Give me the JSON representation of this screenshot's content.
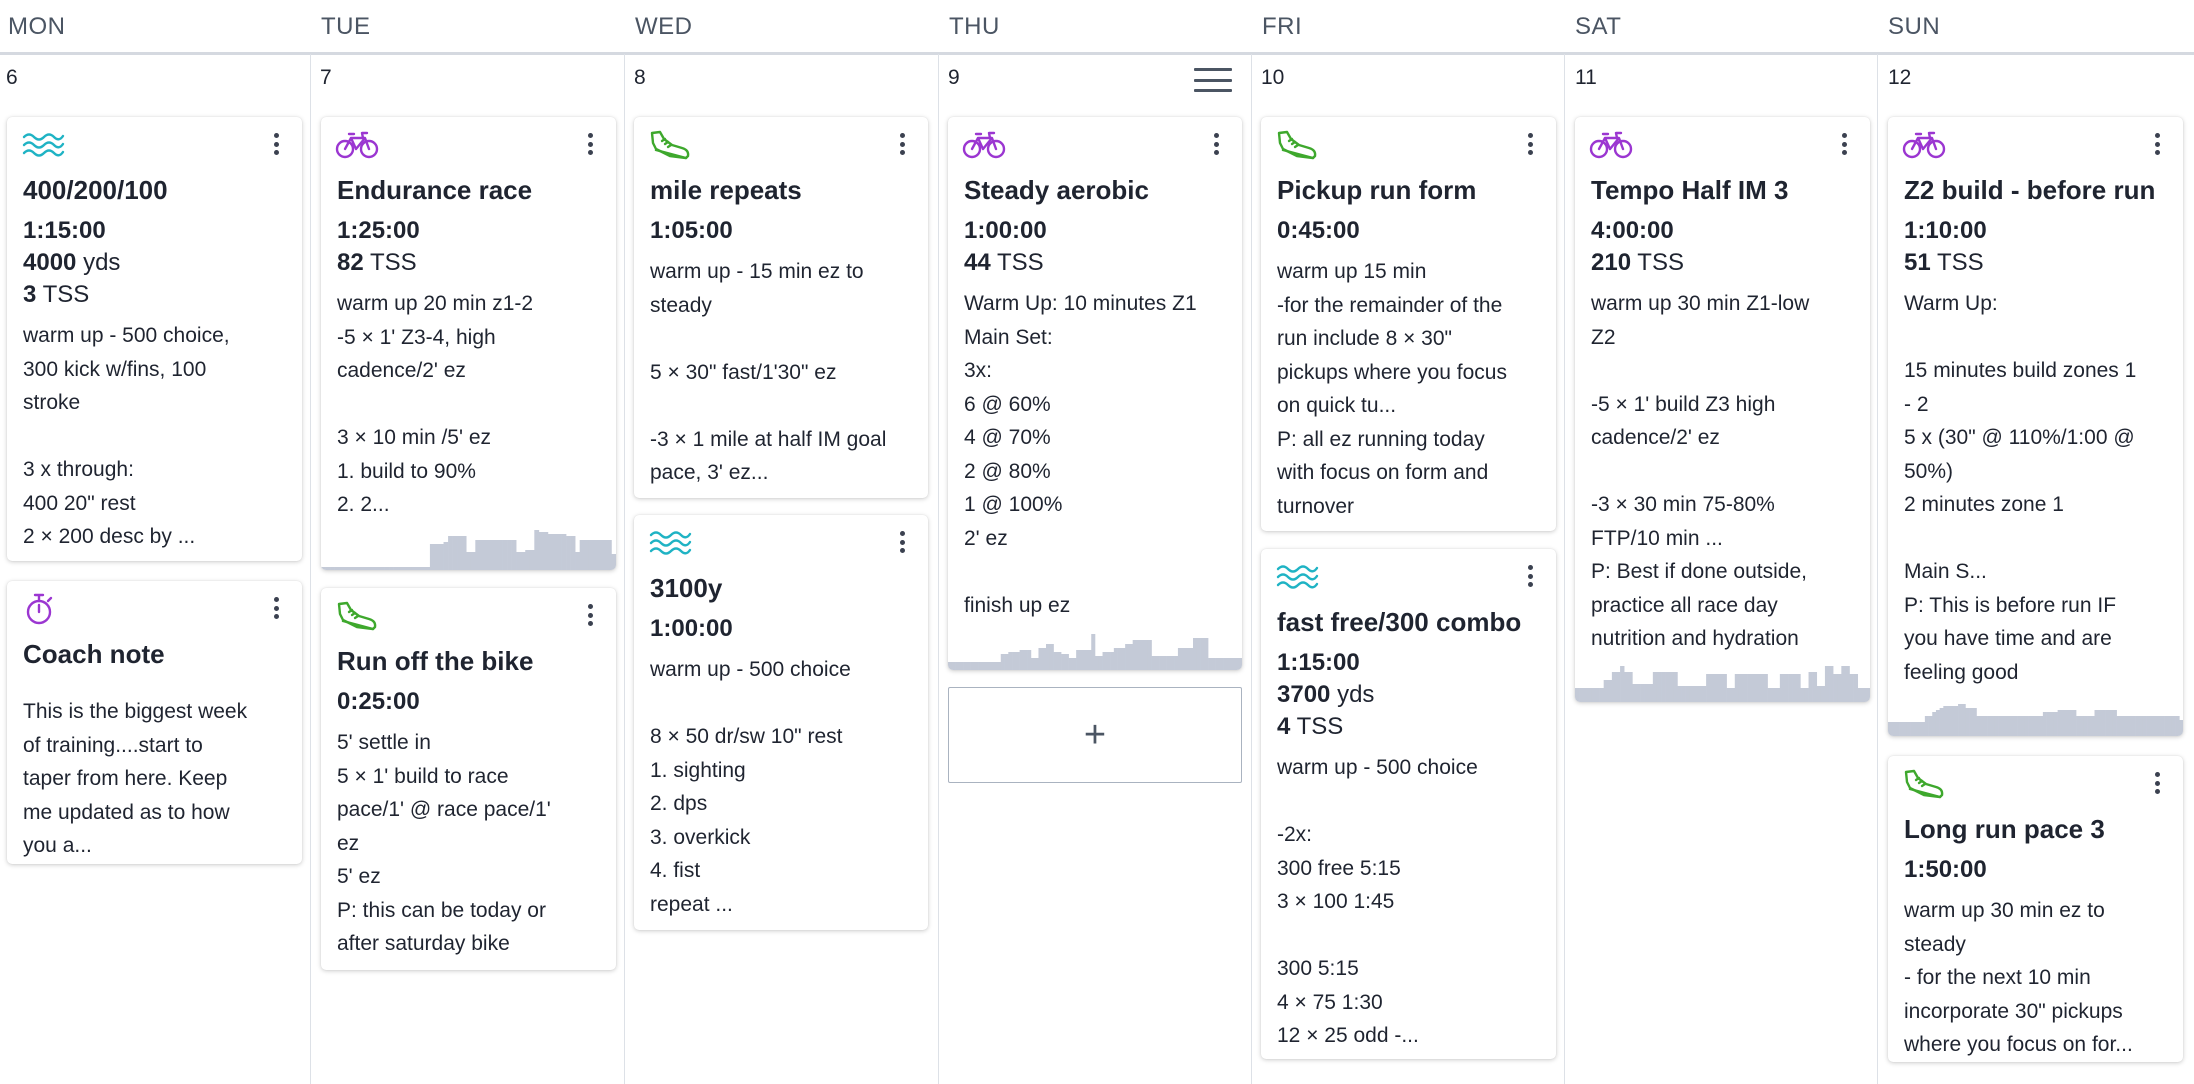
{
  "colors": {
    "swim": "#1fb3c4",
    "bike": "#9b36d1",
    "run": "#3ea82d",
    "note": "#9b36d1",
    "spark": "#c4cad7"
  },
  "days": [
    {
      "name": "MON",
      "date": "6"
    },
    {
      "name": "TUE",
      "date": "7"
    },
    {
      "name": "WED",
      "date": "8"
    },
    {
      "name": "THU",
      "date": "9"
    },
    {
      "name": "FRI",
      "date": "10"
    },
    {
      "name": "SAT",
      "date": "11"
    },
    {
      "name": "SUN",
      "date": "12"
    }
  ],
  "cards": [
    {
      "icon": "swim-icon",
      "title": "400/200/100",
      "duration": "1:15:00",
      "distance": "4000",
      "distance_unit": "yds",
      "tss": "3",
      "tss_unit": "TSS",
      "description": "warm up - 500 choice,\n300 kick w/fins, 100\nstroke\n\n3 x through:\n400 20\" rest\n2 × 200 desc by ..."
    },
    {
      "icon": "stopwatch-icon",
      "title": "Coach note",
      "description": "This is the biggest week\nof training....start to\ntaper from here. Keep\nme updated as to how\nyou a..."
    },
    {
      "icon": "bike-icon",
      "title": "Endurance race",
      "duration": "1:25:00",
      "tss": "82",
      "tss_unit": "TSS",
      "description": "warm up 20 min z1-2\n-5 × 1' Z3-4, high\ncadence/2' ez\n\n3 × 10 min /5' ez\n1. build to 90%\n2. 2..."
    },
    {
      "icon": "shoe-icon",
      "title": "Run off the bike",
      "duration": "0:25:00",
      "description": "5' settle in\n5 × 1' build to race\npace/1' @ race pace/1'\nez\n5' ez\nP: this can be today or\nafter saturday bike"
    },
    {
      "icon": "shoe-icon",
      "title": "mile repeats",
      "duration": "1:05:00",
      "description": "warm up - 15 min ez to\nsteady\n\n5 × 30\" fast/1'30\" ez\n\n-3 × 1 mile at half IM goal\npace, 3' ez..."
    },
    {
      "icon": "swim-icon",
      "title": "3100y",
      "duration": "1:00:00",
      "description": "warm up - 500 choice\n\n8 × 50 dr/sw 10\" rest\n1. sighting\n2. dps\n3. overkick\n4. fist\nrepeat ..."
    },
    {
      "icon": "bike-icon",
      "title": "Steady aerobic",
      "duration": "1:00:00",
      "tss": "44",
      "tss_unit": "TSS",
      "description": "Warm Up: 10 minutes Z1\nMain Set:\n3x:\n6 @ 60%\n4 @ 70%\n2 @ 80%\n1 @ 100%\n2' ez\n\nfinish up ez"
    },
    {
      "icon": "shoe-icon",
      "title": "Pickup run form",
      "duration": "0:45:00",
      "description": "warm up 15 min\n-for the remainder of the\nrun include 8 × 30\"\npickups where you focus\non quick tu...\nP: all ez running today\nwith focus on form and\nturnover"
    },
    {
      "icon": "swim-icon",
      "title": "fast free/300 combo",
      "duration": "1:15:00",
      "distance": "3700",
      "distance_unit": "yds",
      "tss": "4",
      "tss_unit": "TSS",
      "description": "warm up - 500 choice\n\n-2x:\n300 free 5:15\n3 × 100 1:45\n\n300 5:15\n4 × 75 1:30\n12 × 25 odd -..."
    },
    {
      "icon": "bike-icon",
      "title": "Tempo Half IM 3",
      "duration": "4:00:00",
      "tss": "210",
      "tss_unit": "TSS",
      "description": "warm up 30 min Z1-low\nZ2\n\n-5 × 1' build Z3 high\ncadence/2' ez\n\n-3 × 30 min 75-80%\nFTP/10 min ...\nP: Best if done outside,\npractice all race day\nnutrition and hydration"
    },
    {
      "icon": "bike-icon",
      "title": "Z2 build - before run",
      "duration": "1:10:00",
      "tss": "51",
      "tss_unit": "TSS",
      "description": "Warm Up:\n\n15 minutes build zones 1\n- 2\n5 x (30\" @ 110%/1:00 @\n50%)\n2 minutes zone 1\n\nMain S...\nP: This is before run IF\nyou have time and are\nfeeling good"
    },
    {
      "icon": "shoe-icon",
      "title": "Long run pace 3",
      "duration": "1:50:00",
      "description": "warm up 30 min ez to\nsteady\n- for the next 10 min\nincorporate 30\" pickups\nwhere you focus on for..."
    }
  ],
  "add_label": "+"
}
